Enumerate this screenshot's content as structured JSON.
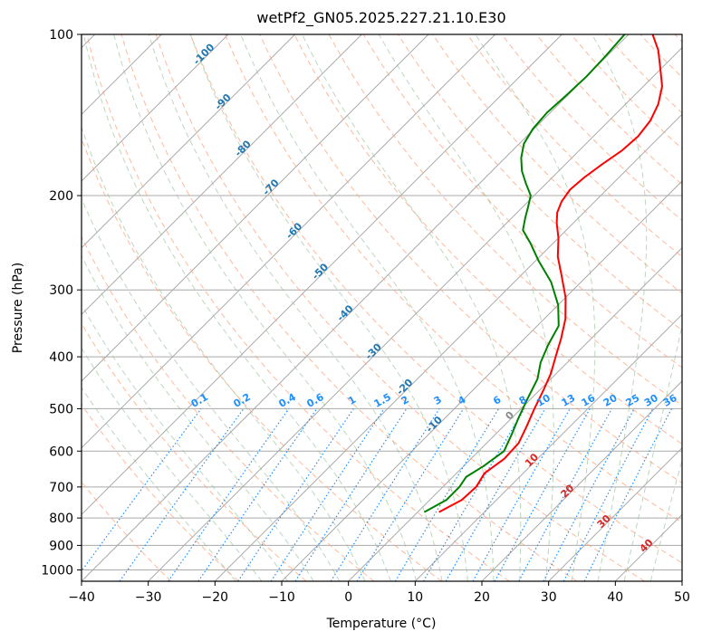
{
  "chart_data": {
    "type": "line",
    "title": "wetPf2_GN05.2025.227.21.10.E30",
    "xlabel": "Temperature (°C)",
    "ylabel": "Pressure (hPa)",
    "xlim": [
      -40,
      50
    ],
    "ylim": [
      1050,
      100
    ],
    "y_scale": "log",
    "x_ticks": [
      "−40",
      "−30",
      "−20",
      "−10",
      "0",
      "10",
      "20",
      "30",
      "40",
      "50"
    ],
    "y_ticks": [
      "100",
      "200",
      "300",
      "400",
      "500",
      "600",
      "700",
      "800",
      "900",
      "1000"
    ],
    "grid": true,
    "skew": true,
    "series": [
      {
        "color": "#ff0000",
        "points": [
          {
            "p": 780,
            "t": 3.2
          },
          {
            "p": 740,
            "t": 4.8
          },
          {
            "p": 700,
            "t": 5.0
          },
          {
            "p": 660,
            "t": 4.2
          },
          {
            "p": 620,
            "t": 5.0
          },
          {
            "p": 580,
            "t": 4.8
          },
          {
            "p": 540,
            "t": 3.5
          },
          {
            "p": 500,
            "t": 2.0
          },
          {
            "p": 460,
            "t": 0.5
          },
          {
            "p": 430,
            "t": -0.8
          },
          {
            "p": 400,
            "t": -2.6
          },
          {
            "p": 370,
            "t": -4.5
          },
          {
            "p": 340,
            "t": -6.8
          },
          {
            "p": 310,
            "t": -10.0
          },
          {
            "p": 280,
            "t": -14.2
          },
          {
            "p": 260,
            "t": -17.3
          },
          {
            "p": 240,
            "t": -20.0
          },
          {
            "p": 225,
            "t": -22.5
          },
          {
            "p": 215,
            "t": -24.0
          },
          {
            "p": 205,
            "t": -25.0
          },
          {
            "p": 195,
            "t": -25.5
          },
          {
            "p": 185,
            "t": -25.2
          },
          {
            "p": 175,
            "t": -24.5
          },
          {
            "p": 165,
            "t": -23.6
          },
          {
            "p": 155,
            "t": -23.3
          },
          {
            "p": 145,
            "t": -23.8
          },
          {
            "p": 135,
            "t": -25.1
          },
          {
            "p": 125,
            "t": -27.2
          },
          {
            "p": 115,
            "t": -30.4
          },
          {
            "p": 107,
            "t": -33.2
          },
          {
            "p": 100,
            "t": -36.4
          }
        ]
      },
      {
        "color": "#008000",
        "points": [
          {
            "p": 780,
            "t": 1.0
          },
          {
            "p": 740,
            "t": 2.5
          },
          {
            "p": 700,
            "t": 2.5
          },
          {
            "p": 670,
            "t": 2.0
          },
          {
            "p": 640,
            "t": 3.0
          },
          {
            "p": 600,
            "t": 3.8
          },
          {
            "p": 560,
            "t": 2.5
          },
          {
            "p": 520,
            "t": 1.0
          },
          {
            "p": 480,
            "t": -0.5
          },
          {
            "p": 440,
            "t": -2.0
          },
          {
            "p": 410,
            "t": -4.0
          },
          {
            "p": 380,
            "t": -5.5
          },
          {
            "p": 350,
            "t": -6.8
          },
          {
            "p": 320,
            "t": -10.0
          },
          {
            "p": 290,
            "t": -14.5
          },
          {
            "p": 265,
            "t": -19.5
          },
          {
            "p": 245,
            "t": -23.5
          },
          {
            "p": 232,
            "t": -26.5
          },
          {
            "p": 220,
            "t": -28.0
          },
          {
            "p": 210,
            "t": -29.2
          },
          {
            "p": 200,
            "t": -30.5
          },
          {
            "p": 190,
            "t": -33.0
          },
          {
            "p": 180,
            "t": -35.5
          },
          {
            "p": 170,
            "t": -37.6
          },
          {
            "p": 160,
            "t": -39.3
          },
          {
            "p": 150,
            "t": -40.2
          },
          {
            "p": 140,
            "t": -40.5
          },
          {
            "p": 130,
            "t": -40.2
          },
          {
            "p": 120,
            "t": -40.0
          },
          {
            "p": 110,
            "t": -40.2
          },
          {
            "p": 100,
            "t": -40.6
          }
        ]
      }
    ],
    "dry_adiabat_labels": [
      "-100",
      "-90",
      "-80",
      "-70",
      "-60",
      "-50",
      "-40",
      "-30",
      "-20",
      "-10"
    ],
    "moist_adiabat_labels": [
      "0",
      "10",
      "20",
      "30",
      "40"
    ],
    "mixing_ratio_labels": [
      "0.1",
      "0.2",
      "0.4",
      "0.6",
      "1",
      "1.5",
      "2",
      "3",
      "4",
      "6",
      "8",
      "10",
      "13",
      "16",
      "20",
      "25",
      "30",
      "36"
    ],
    "colors": {
      "temperature": "#ff0000",
      "dewpoint": "#008000",
      "isotherm": "#aaaaaa",
      "dry_adiabat": "#ffa07a",
      "moist_adiabat": "#8fbc8f",
      "mixing_ratio": "#1e90ff"
    }
  }
}
